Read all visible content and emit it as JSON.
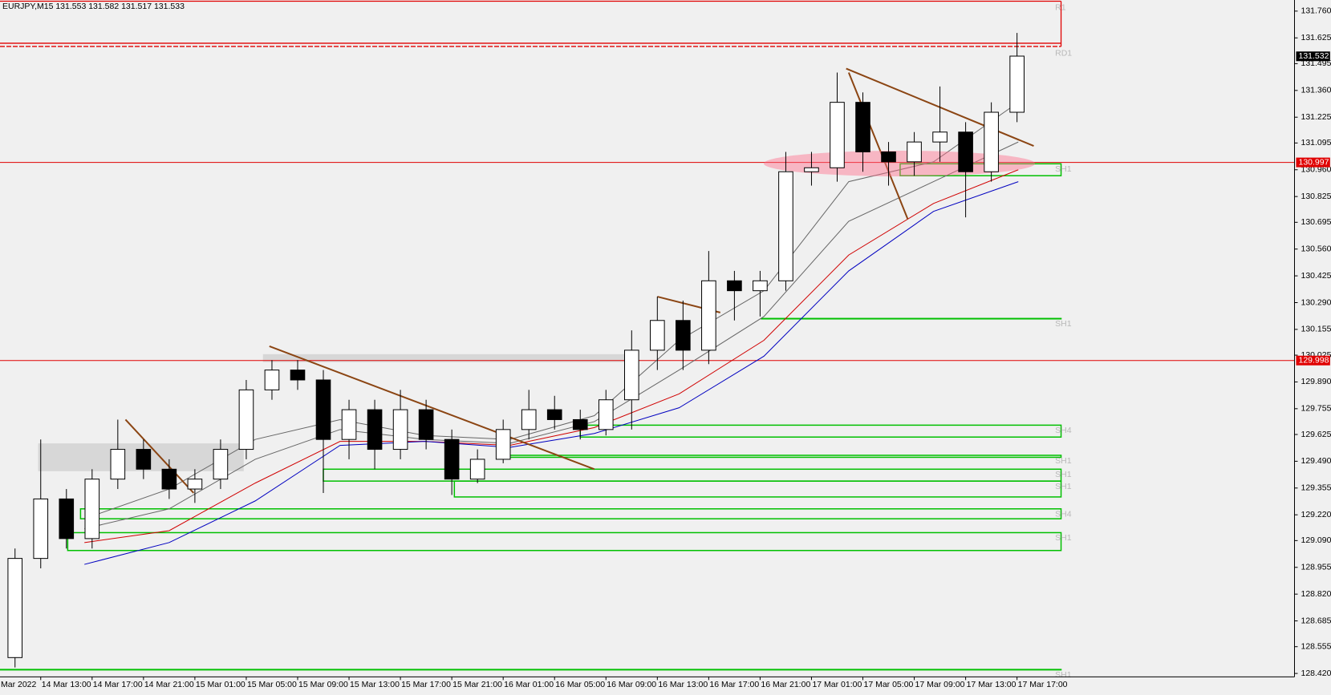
{
  "chart_data": {
    "type": "candlestick",
    "title": "EURJPY,M15  131.553 131.582 131.517 131.533",
    "x": [
      11,
      13,
      15,
      17,
      19,
      21,
      23,
      25,
      27,
      29,
      31,
      33,
      35,
      37,
      39,
      41,
      43,
      45,
      47,
      49,
      51,
      53,
      55,
      57,
      59,
      61,
      63,
      65,
      67,
      69,
      71,
      73,
      75,
      77,
      79,
      81,
      83,
      85,
      87,
      89
    ],
    "open": [
      128.5,
      129.0,
      129.3,
      129.1,
      129.4,
      129.55,
      129.45,
      129.35,
      129.4,
      129.55,
      129.85,
      129.95,
      129.9,
      129.6,
      129.75,
      129.55,
      129.75,
      129.6,
      129.4,
      129.5,
      129.65,
      129.75,
      129.7,
      129.65,
      129.8,
      130.05,
      130.2,
      130.05,
      130.4,
      130.35,
      130.4,
      130.95,
      130.97,
      131.3,
      131.05,
      131.0,
      131.1,
      131.15,
      130.95,
      131.25
    ],
    "high": [
      129.05,
      129.6,
      129.35,
      129.45,
      129.7,
      129.6,
      129.5,
      129.45,
      129.6,
      129.9,
      130.0,
      130.0,
      129.95,
      129.8,
      129.8,
      129.85,
      129.8,
      129.65,
      129.55,
      129.7,
      129.85,
      129.82,
      129.75,
      129.85,
      130.15,
      130.32,
      130.3,
      130.55,
      130.45,
      130.45,
      131.05,
      131.05,
      131.45,
      131.35,
      131.1,
      131.15,
      131.38,
      131.2,
      131.3,
      131.65
    ],
    "low": [
      128.45,
      128.95,
      129.05,
      129.05,
      129.35,
      129.4,
      129.3,
      129.28,
      129.35,
      129.5,
      129.8,
      129.85,
      129.33,
      129.5,
      129.45,
      129.5,
      129.55,
      129.32,
      129.38,
      129.48,
      129.6,
      129.65,
      129.6,
      129.62,
      129.65,
      129.95,
      129.95,
      129.98,
      130.2,
      130.22,
      130.35,
      130.88,
      130.9,
      130.95,
      130.88,
      130.93,
      131.0,
      130.72,
      130.9,
      131.2
    ],
    "close": [
      129.0,
      129.3,
      129.1,
      129.4,
      129.55,
      129.45,
      129.35,
      129.4,
      129.55,
      129.85,
      129.95,
      129.9,
      129.6,
      129.75,
      129.55,
      129.75,
      129.6,
      129.4,
      129.5,
      129.65,
      129.75,
      129.7,
      129.65,
      129.8,
      130.05,
      130.2,
      130.05,
      130.4,
      130.35,
      130.4,
      130.95,
      130.97,
      131.3,
      131.05,
      131.0,
      131.1,
      131.15,
      130.95,
      131.25,
      131.533
    ],
    "up_color": "#ffffff",
    "down_color": "#000000",
    "xlim": [
      9.83,
      110.6
    ],
    "xticks": [
      {
        "value": 9,
        "label": "Mar 2022"
      },
      {
        "value": 13,
        "label": "14 Mar 13:00"
      },
      {
        "value": 17,
        "label": "14 Mar 17:00"
      },
      {
        "value": 21,
        "label": "14 Mar 21:00"
      },
      {
        "value": 25,
        "label": "15 Mar 01:00"
      },
      {
        "value": 29,
        "label": "15 Mar 05:00"
      },
      {
        "value": 33,
        "label": "15 Mar 09:00"
      },
      {
        "value": 37,
        "label": "15 Mar 13:00"
      },
      {
        "value": 41,
        "label": "15 Mar 17:00"
      },
      {
        "value": 45,
        "label": "15 Mar 21:00"
      },
      {
        "value": 49,
        "label": "16 Mar 01:00"
      },
      {
        "value": 53,
        "label": "16 Mar 05:00"
      },
      {
        "value": 57,
        "label": "16 Mar 09:00"
      },
      {
        "value": 61,
        "label": "16 Mar 13:00"
      },
      {
        "value": 65,
        "label": "16 Mar 17:00"
      },
      {
        "value": 69,
        "label": "16 Mar 21:00"
      },
      {
        "value": 73,
        "label": "17 Mar 01:00"
      },
      {
        "value": 77,
        "label": "17 Mar 05:00"
      },
      {
        "value": 81,
        "label": "17 Mar 09:00"
      },
      {
        "value": 85,
        "label": "17 Mar 13:00"
      },
      {
        "value": 89,
        "label": "17 Mar 17:00"
      }
    ],
    "ylim": [
      128.403,
      131.816
    ],
    "yticks": [
      {
        "value": 131.76,
        "label": "131.760"
      },
      {
        "value": 131.625,
        "label": "131.625"
      },
      {
        "value": 131.495,
        "label": "131.495"
      },
      {
        "value": 131.36,
        "label": "131.360"
      },
      {
        "value": 131.225,
        "label": "131.225"
      },
      {
        "value": 131.095,
        "label": "131.095"
      },
      {
        "value": 130.96,
        "label": "130.960"
      },
      {
        "value": 130.825,
        "label": "130.825"
      },
      {
        "value": 130.695,
        "label": "130.695"
      },
      {
        "value": 130.56,
        "label": "130.560"
      },
      {
        "value": 130.425,
        "label": "130.425"
      },
      {
        "value": 130.29,
        "label": "130.290"
      },
      {
        "value": 130.155,
        "label": "130.155"
      },
      {
        "value": 130.025,
        "label": "130.025"
      },
      {
        "value": 129.89,
        "label": "129.890"
      },
      {
        "value": 129.755,
        "label": "129.755"
      },
      {
        "value": 129.625,
        "label": "129.625"
      },
      {
        "value": 129.49,
        "label": "129.490"
      },
      {
        "value": 129.355,
        "label": "129.355"
      },
      {
        "value": 129.22,
        "label": "129.220"
      },
      {
        "value": 129.09,
        "label": "129.090"
      },
      {
        "value": 128.955,
        "label": "128.955"
      },
      {
        "value": 128.82,
        "label": "128.820"
      },
      {
        "value": 128.685,
        "label": "128.685"
      },
      {
        "value": 128.555,
        "label": "128.555"
      },
      {
        "value": 128.42,
        "label": "128.420"
      }
    ],
    "price_markers": [
      {
        "value": 131.532,
        "color": "#000000",
        "line": false
      },
      {
        "value": 130.997,
        "color": "#e00000",
        "line": true
      },
      {
        "value": 129.998,
        "color": "#e00000",
        "line": true
      }
    ],
    "moving_averages": [
      {
        "color": "#666666",
        "x": [
          16.4,
          23.0,
          29.7,
          36.3,
          42.9,
          49.5,
          56.1,
          62.7,
          69.3,
          75.9,
          82.5,
          89.1
        ],
        "values": [
          129.2,
          129.35,
          129.6,
          129.7,
          129.62,
          129.6,
          129.72,
          130.1,
          130.35,
          130.9,
          131.0,
          131.3
        ]
      },
      {
        "color": "#666666",
        "x": [
          16.4,
          23.0,
          29.7,
          36.3,
          42.9,
          49.5,
          56.1,
          62.7,
          69.3,
          75.9,
          82.5,
          89.1
        ],
        "values": [
          129.15,
          129.25,
          129.5,
          129.65,
          129.6,
          129.58,
          129.69,
          129.95,
          130.22,
          130.7,
          130.9,
          131.1
        ]
      },
      {
        "color": "#d00000",
        "x": [
          16.4,
          23.0,
          29.7,
          36.3,
          42.9,
          49.5,
          56.1,
          62.7,
          69.3,
          75.9,
          82.5,
          89.1
        ],
        "values": [
          129.08,
          129.14,
          129.38,
          129.59,
          129.59,
          129.57,
          129.66,
          129.83,
          130.1,
          130.53,
          130.79,
          130.96
        ]
      },
      {
        "color": "#0000c0",
        "x": [
          16.4,
          23.0,
          29.7,
          36.3,
          42.9,
          49.5,
          56.1,
          62.7,
          69.3,
          75.9,
          82.5,
          89.1
        ],
        "values": [
          128.97,
          129.08,
          129.29,
          129.57,
          129.59,
          129.56,
          129.63,
          129.76,
          130.02,
          130.45,
          130.75,
          130.9
        ]
      }
    ],
    "shaded": [
      {
        "x": [
          12.8,
          28.8
        ],
        "values": [
          129.58,
          129.44
        ]
      },
      {
        "x": [
          30.3,
          59.4
        ],
        "values": [
          130.03,
          129.99
        ]
      }
    ],
    "zone_color": "#00c000",
    "zones": [
      {
        "label": "SH1",
        "top": 130.99,
        "bottom": 130.93,
        "start": 79.9
      },
      {
        "label": "SH1",
        "top": 130.21,
        "bottom": 130.21,
        "start": 69.1
      },
      {
        "label": "SH4",
        "top": 129.672,
        "bottom": 129.612,
        "start": 55.0
      },
      {
        "label": "SH1",
        "top": 129.52,
        "bottom": 129.51,
        "start": 49.2
      },
      {
        "label": "SH1",
        "top": 129.45,
        "bottom": 129.39,
        "start": 35.0
      },
      {
        "label": "SH1",
        "top": 129.39,
        "bottom": 129.31,
        "start": 45.2
      },
      {
        "label": "SH4",
        "top": 129.25,
        "bottom": 129.2,
        "start": 16.1
      },
      {
        "label": "SH1",
        "top": 129.13,
        "bottom": 129.04,
        "start": 15.1
      },
      {
        "label": "SH1",
        "top": 128.44,
        "bottom": 128.44,
        "start": 9.83
      }
    ],
    "level_color": "#e00000",
    "levels": [
      {
        "label": "R1",
        "value": 131.81
      },
      {
        "label": "RD1",
        "value": 131.598
      }
    ],
    "trend_color": "#8b4513",
    "trendlines": [
      {
        "x": [
          30.8,
          56.1
        ],
        "values": [
          130.07,
          129.45
        ]
      },
      {
        "x": [
          19.6,
          24.9
        ],
        "values": [
          129.7,
          129.33
        ]
      },
      {
        "x": [
          61.0,
          65.9
        ],
        "values": [
          130.32,
          130.24
        ]
      },
      {
        "x": [
          75.7,
          90.3
        ],
        "values": [
          131.47,
          131.08
        ]
      },
      {
        "x": [
          75.9,
          80.5
        ],
        "values": [
          131.45,
          130.71
        ]
      }
    ]
  }
}
